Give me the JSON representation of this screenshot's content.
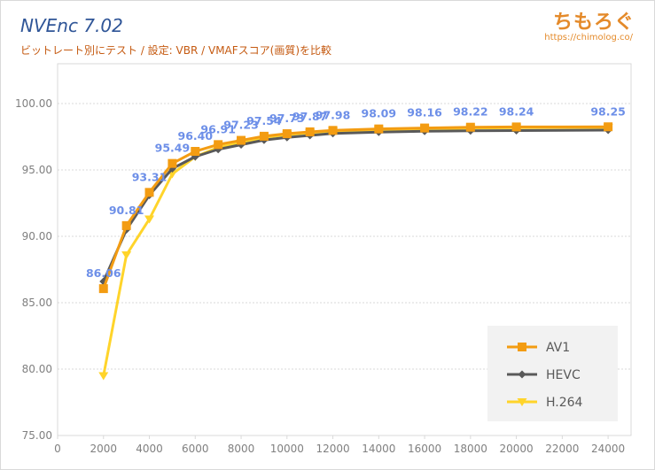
{
  "header": {
    "title": "NVEnc 7.02",
    "subtitle": "ビットレート別にテスト / 設定: VBR / VMAFスコア(画質)を比較",
    "brand": "ちもろぐ",
    "brand_url": "https://chimolog.co/"
  },
  "colors": {
    "av1": "#f39c12",
    "hevc": "#595959",
    "h264": "#ffd42a",
    "data_label": "#6d8fe8",
    "grid": "#d9d9d9",
    "axis_text": "#808080"
  },
  "chart_data": {
    "type": "line",
    "title": "NVEnc 7.02",
    "xlim": [
      0,
      25000
    ],
    "ylim": [
      75,
      103
    ],
    "x_ticks": [
      0,
      2000,
      4000,
      6000,
      8000,
      10000,
      12000,
      14000,
      16000,
      18000,
      20000,
      22000,
      24000
    ],
    "y_ticks": [
      75,
      80,
      85,
      90,
      95,
      100
    ],
    "x_tick_labels": [
      "0",
      "2000",
      "4000",
      "6000",
      "8000",
      "10000",
      "12000",
      "14000",
      "16000",
      "18000",
      "20000",
      "22000",
      "24000"
    ],
    "y_tick_labels": [
      "75.00",
      "80.00",
      "85.00",
      "90.00",
      "95.00",
      "100.00"
    ],
    "grid": true,
    "legend_position": "bottom-right",
    "series": [
      {
        "name": "AV1",
        "marker": "square",
        "x": [
          2000,
          3000,
          4000,
          5000,
          6000,
          7000,
          8000,
          9000,
          10000,
          11000,
          12000,
          14000,
          16000,
          18000,
          20000,
          24000
        ],
        "values": [
          86.06,
          90.81,
          93.31,
          95.49,
          96.4,
          96.91,
          97.23,
          97.54,
          97.73,
          97.87,
          97.98,
          98.09,
          98.16,
          98.22,
          98.24,
          98.25
        ],
        "labels": [
          "86.06",
          "90.81",
          "93.31",
          "95.49",
          "96.40",
          "96.91",
          "97.23",
          "97.54",
          "97.73",
          "97.87",
          "97.98",
          "98.09",
          "98.16",
          "98.22",
          "98.24",
          "98.25"
        ]
      },
      {
        "name": "HEVC",
        "marker": "diamond",
        "x": [
          2000,
          3000,
          4000,
          5000,
          6000,
          7000,
          8000,
          9000,
          10000,
          11000,
          12000,
          14000,
          16000,
          18000,
          20000,
          24000
        ],
        "values": [
          86.6,
          90.5,
          93.1,
          95.1,
          96.0,
          96.55,
          96.9,
          97.25,
          97.45,
          97.6,
          97.75,
          97.85,
          97.92,
          97.95,
          97.97,
          98.0
        ]
      },
      {
        "name": "H.264",
        "marker": "triangle-down",
        "x": [
          2000,
          3000,
          4000,
          5000,
          6000,
          7000,
          8000,
          9000,
          10000,
          11000,
          12000,
          14000,
          16000,
          18000,
          20000,
          24000
        ],
        "values": [
          79.5,
          88.6,
          91.3,
          94.7,
          96.0,
          96.7,
          97.05,
          97.45,
          97.65,
          97.8,
          97.92,
          98.03,
          98.1,
          98.15,
          98.18,
          98.2
        ]
      }
    ]
  }
}
